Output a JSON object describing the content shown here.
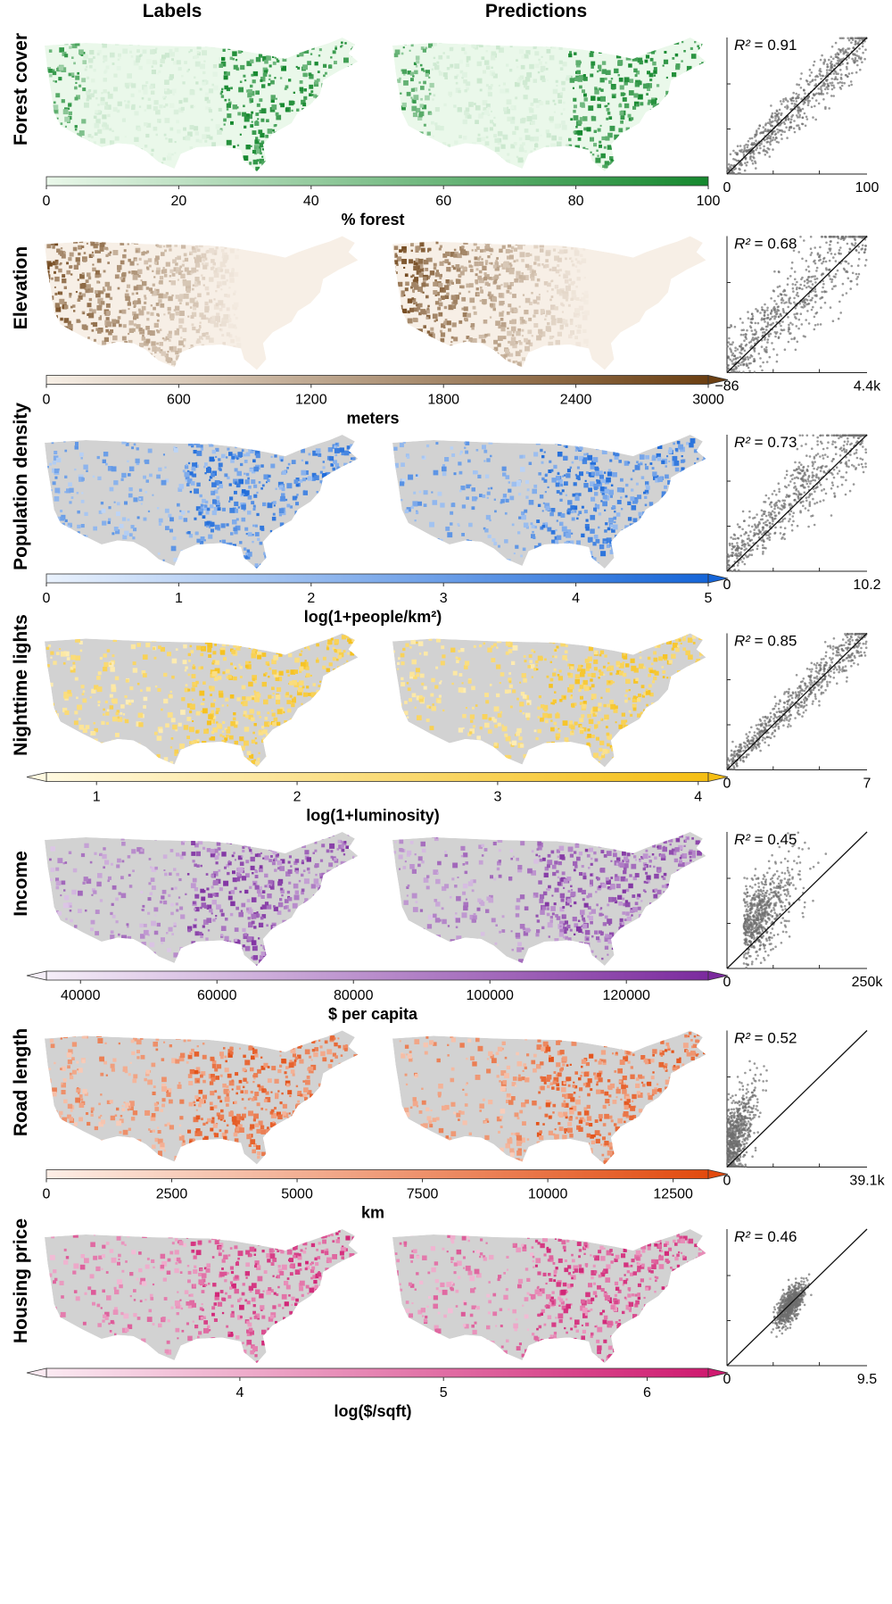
{
  "headers": {
    "labels": "Labels",
    "predictions": "Predictions"
  },
  "chart_data": [
    {
      "type": "map-with-scatter",
      "variable": "Forest cover",
      "colorbar": {
        "label": "% forest",
        "ticks": [
          "0",
          "20",
          "40",
          "60",
          "80",
          "100"
        ],
        "range": [
          0,
          100
        ],
        "extend": "none",
        "colors": [
          "#eaf8ea",
          "#15882e"
        ],
        "hasZero": true
      },
      "scatter": {
        "r2_label": "R²",
        "r2": "0.91",
        "x_min": "0",
        "x_max": "100",
        "cloud": "tight",
        "noise": 0.12,
        "bias": 0.0
      }
    },
    {
      "type": "map-with-scatter",
      "variable": "Elevation",
      "colorbar": {
        "label": "meters",
        "ticks": [
          "0",
          "600",
          "1200",
          "1800",
          "2400",
          "3000"
        ],
        "range": [
          0,
          3000
        ],
        "extend": "right",
        "colors": [
          "#f7efe6",
          "#6b3f12"
        ]
      },
      "scatter": {
        "r2_label": "R²",
        "r2": "0.68",
        "x_min": "−86",
        "x_max": "4.4k",
        "cloud": "wide",
        "noise": 0.22,
        "bias": 0.05
      }
    },
    {
      "type": "map-with-scatter",
      "variable": "Population density",
      "colorbar": {
        "label": "log(1+people/km²)",
        "ticks": [
          "0",
          "1",
          "2",
          "3",
          "4",
          "5"
        ],
        "range": [
          0,
          5
        ],
        "extend": "right",
        "colors": [
          "#eaf2fd",
          "#1565d8"
        ],
        "hasZero": true
      },
      "scatter": {
        "r2_label": "R²",
        "r2": "0.73",
        "x_min": "0",
        "x_max": "10.2",
        "cloud": "wide",
        "noise": 0.18,
        "bias": 0.08
      }
    },
    {
      "type": "map-with-scatter",
      "variable": "Nighttime lights",
      "colorbar": {
        "label": "log(1+luminosity)",
        "ticks": [
          "1",
          "2",
          "3",
          "4"
        ],
        "range": [
          0.75,
          4.05
        ],
        "extend": "both",
        "colors": [
          "#fff9e0",
          "#f5be12"
        ]
      },
      "scatter": {
        "r2_label": "R²",
        "r2": "0.85",
        "x_min": "0",
        "x_max": "7",
        "cloud": "tight",
        "noise": 0.1,
        "bias": 0.02
      }
    },
    {
      "type": "map-with-scatter",
      "variable": "Income",
      "colorbar": {
        "label": "$ per capita",
        "ticks": [
          "40000",
          "60000",
          "80000",
          "100000",
          "120000"
        ],
        "range": [
          35000,
          132000
        ],
        "extend": "both",
        "colors": [
          "#f5eef8",
          "#7b2a9e"
        ]
      },
      "scatter": {
        "r2_label": "R²",
        "r2": "0.45",
        "x_min": "0",
        "x_max": "250k",
        "cloud": "blob",
        "noise": 0.2,
        "bias": 0.15
      }
    },
    {
      "type": "map-with-scatter",
      "variable": "Road length",
      "colorbar": {
        "label": "km",
        "ticks": [
          "0",
          "2500",
          "5000",
          "7500",
          "10000",
          "12500"
        ],
        "range": [
          0,
          13200
        ],
        "extend": "right",
        "colors": [
          "#fdeee6",
          "#e24a0e"
        ],
        "hasZero": true
      },
      "scatter": {
        "r2_label": "R²",
        "r2": "0.52",
        "x_min": "0",
        "x_max": "39.1k",
        "cloud": "narrow",
        "noise": 0.2,
        "bias": 0.1
      }
    },
    {
      "type": "map-with-scatter",
      "variable": "Housing price",
      "colorbar": {
        "label": "log($/sqft)",
        "ticks": [
          "4",
          "5",
          "6"
        ],
        "range": [
          3.05,
          6.3
        ],
        "extend": "both",
        "colors": [
          "#fbeaf2",
          "#cf1a70"
        ]
      },
      "scatter": {
        "r2_label": "R²",
        "r2": "0.46",
        "x_min": "0",
        "x_max": "9.5",
        "cloud": "cluster",
        "noise": 0.08,
        "bias": 0.0
      }
    }
  ]
}
